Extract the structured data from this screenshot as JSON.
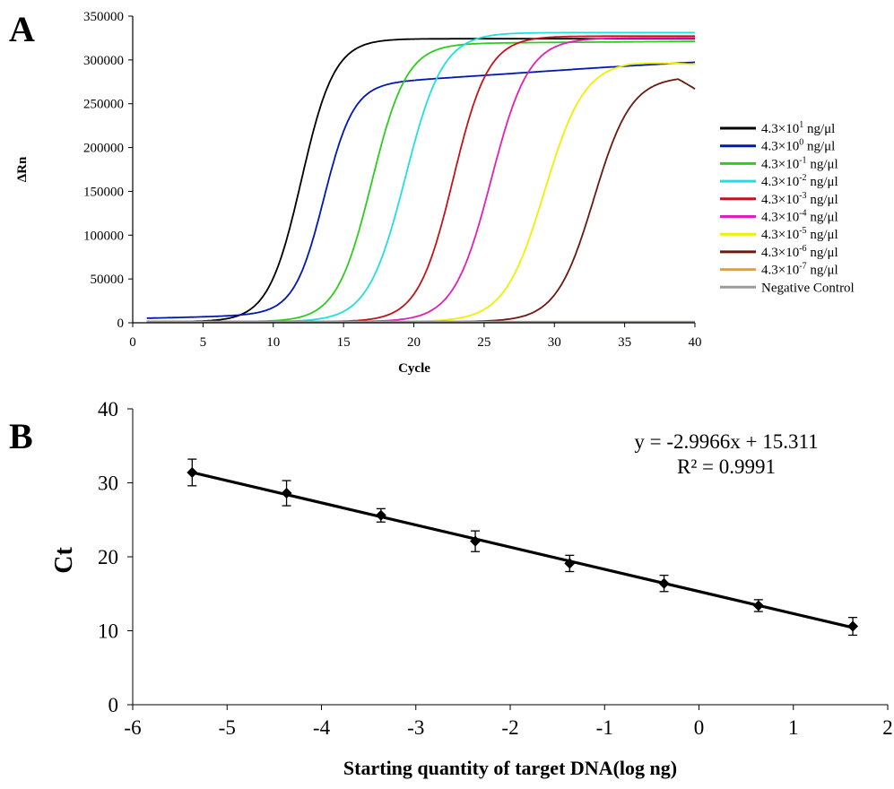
{
  "chart_data": [
    {
      "panel_label": "A",
      "type": "line",
      "xlabel": "Cycle",
      "ylabel": "ΔRn",
      "xlim": [
        0,
        40
      ],
      "ylim": [
        0,
        350000
      ],
      "x_ticks": [
        "0",
        "5",
        "10",
        "15",
        "20",
        "25",
        "30",
        "35",
        "40"
      ],
      "y_ticks": [
        "0",
        "50000",
        "100000",
        "150000",
        "200000",
        "250000",
        "300000",
        "350000"
      ],
      "legend_position": "right",
      "grid": false,
      "series": [
        {
          "legend_base": "4.3×10",
          "legend_exp": "1",
          "legend_unit": " ng/μl",
          "color": "#000000",
          "ct": 12.0,
          "plateau": 323000,
          "end": 323000,
          "k": 0.85,
          "late": 0
        },
        {
          "legend_base": "4.3×10",
          "legend_exp": "0",
          "legend_unit": " ng/μl",
          "color": "#0018b0",
          "ct": 13.6,
          "plateau": 260000,
          "end": 290000,
          "k": 0.95,
          "late": 0.09
        },
        {
          "legend_base": "4.3×10",
          "legend_exp": "-1",
          "legend_unit": " ng/μl",
          "color": "#2ecc1f",
          "ct": 17.0,
          "plateau": 318000,
          "end": 320000,
          "k": 0.8,
          "late": 0
        },
        {
          "legend_base": "4.3×10",
          "legend_exp": "-2",
          "legend_unit": " ng/μl",
          "color": "#22dede",
          "ct": 19.4,
          "plateau": 330000,
          "end": 330000,
          "k": 0.75,
          "late": 0
        },
        {
          "legend_base": "4.3×10",
          "legend_exp": "-3",
          "legend_unit": " ng/μl",
          "color": "#c0141c",
          "ct": 22.8,
          "plateau": 326000,
          "end": 326000,
          "k": 0.8,
          "late": 0
        },
        {
          "legend_base": "4.3×10",
          "legend_exp": "-4",
          "legend_unit": " ng/μl",
          "color": "#e020b8",
          "ct": 25.5,
          "plateau": 324000,
          "end": 324000,
          "k": 0.75,
          "late": 0
        },
        {
          "legend_base": "4.3×10",
          "legend_exp": "-5",
          "legend_unit": " ng/μl",
          "color": "#f0f000",
          "ct": 29.3,
          "plateau": 298000,
          "end": 294000,
          "k": 0.7,
          "late": 0
        },
        {
          "legend_base": "4.3×10",
          "legend_exp": "-6",
          "legend_unit": " ng/μl",
          "color": "#6b1a10",
          "ct": 32.8,
          "plateau": 280000,
          "end": 267000,
          "k": 0.75,
          "late": 0
        },
        {
          "legend_base": "4.3×10",
          "legend_exp": "-7",
          "legend_unit": " ng/μl",
          "color": "#f0a020",
          "flat": true
        },
        {
          "legend_base": "Negative Control",
          "legend_exp": "",
          "legend_unit": "",
          "color": "#9a9a9a",
          "flat": true
        }
      ]
    },
    {
      "panel_label": "B",
      "type": "scatter",
      "xlabel": "Starting quantity of target DNA(log ng)",
      "ylabel": "Ct",
      "xlim": [
        -6,
        2
      ],
      "ylim": [
        0,
        40
      ],
      "x_ticks": [
        "-6",
        "-5",
        "-4",
        "-3",
        "-2",
        "-1",
        "0",
        "1",
        "2"
      ],
      "y_ticks": [
        "0",
        "10",
        "20",
        "30",
        "40"
      ],
      "grid": false,
      "points": [
        {
          "x": -5.37,
          "y": 31.4,
          "err": 1.8
        },
        {
          "x": -4.37,
          "y": 28.6,
          "err": 1.7
        },
        {
          "x": -3.37,
          "y": 25.6,
          "err": 0.9
        },
        {
          "x": -2.37,
          "y": 22.1,
          "err": 1.4
        },
        {
          "x": -1.37,
          "y": 19.1,
          "err": 1.1
        },
        {
          "x": -0.37,
          "y": 16.4,
          "err": 1.1
        },
        {
          "x": 0.63,
          "y": 13.4,
          "err": 0.8
        },
        {
          "x": 1.63,
          "y": 10.6,
          "err": 1.2
        }
      ],
      "trendline": {
        "slope": -2.9966,
        "intercept": 15.311
      },
      "equation": "y = -2.9966x + 15.311",
      "r_squared": "R² = 0.9991"
    }
  ]
}
